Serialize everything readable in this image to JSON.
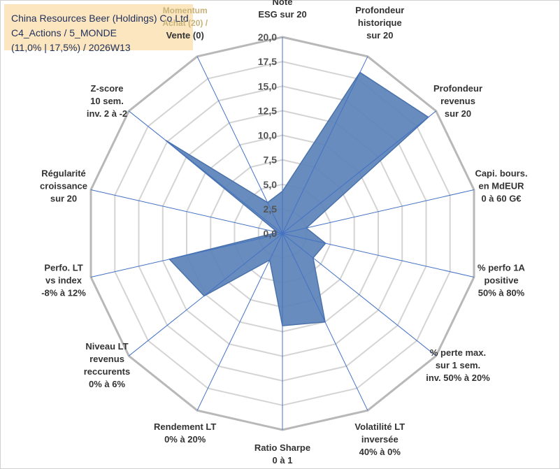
{
  "chart_data": {
    "type": "radar",
    "title_lines": [
      "China Resources Beer (Holdings) Co Ltd",
      "C4_Actions / 5_MONDE",
      "(11,0% | 17,5%) / 2026W13"
    ],
    "rlim": [
      0,
      20
    ],
    "ticks": [
      {
        "value": 0,
        "label": "0,0"
      },
      {
        "value": 2.5,
        "label": "2,5"
      },
      {
        "value": 5,
        "label": "5,0"
      },
      {
        "value": 7.5,
        "label": "7,5"
      },
      {
        "value": 10,
        "label": "10,0"
      },
      {
        "value": 12.5,
        "label": "12,5"
      },
      {
        "value": 15,
        "label": "15,0"
      },
      {
        "value": 17.5,
        "label": "17,5"
      },
      {
        "value": 20,
        "label": "20,0"
      }
    ],
    "axes": [
      {
        "lines": [
          "Note",
          "ESG sur 20"
        ]
      },
      {
        "lines": [
          "Profondeur",
          "historique",
          "sur 20"
        ]
      },
      {
        "lines": [
          "Profondeur",
          "revenus",
          "sur 20"
        ]
      },
      {
        "lines": [
          "Capi. bours.",
          "en MdEUR",
          "0 à 60 G€"
        ]
      },
      {
        "lines": [
          "% perfo 1A",
          "positive",
          "50% à 80%"
        ]
      },
      {
        "lines": [
          "% perte max.",
          "sur 1 sem.",
          "inv. 50% à 20%"
        ]
      },
      {
        "lines": [
          "Volatilité LT",
          "inversée",
          "40% à 0%"
        ]
      },
      {
        "lines": [
          "Ratio Sharpe",
          "0 à 1"
        ]
      },
      {
        "lines": [
          "Rendement LT",
          "0% à 20%"
        ]
      },
      {
        "lines": [
          "Niveau LT",
          "revenus",
          "reccurents",
          "0% à 6%"
        ]
      },
      {
        "lines": [
          "Perfo. LT",
          "vs index",
          "-8% à 12%"
        ]
      },
      {
        "lines": [
          "Régularité",
          "croissance",
          "sur 20"
        ]
      },
      {
        "lines": [
          "Z-score",
          "10 sem.",
          "inv. 2 à -2"
        ]
      },
      {
        "lines": [
          "Momentum",
          "Achat (20) /",
          "Vente (0)"
        ],
        "highlight_first_lines": 2
      }
    ],
    "series": [
      {
        "name": "China Resources Beer (Holdings) Co Ltd",
        "color": "#5b82b9",
        "values": [
          4.3,
          18.2,
          19.0,
          2.5,
          4.5,
          4.0,
          10.0,
          9.4,
          3.0,
          10.2,
          11.8,
          0.5,
          15.2,
          3.5
        ]
      }
    ]
  }
}
